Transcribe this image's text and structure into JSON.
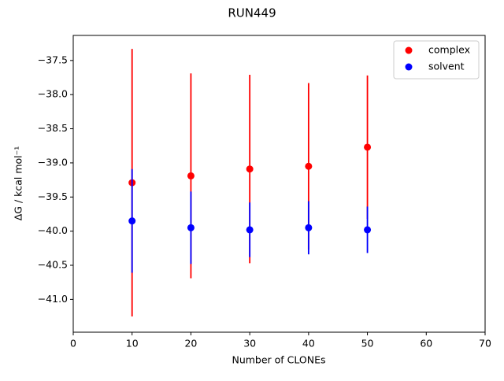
{
  "chart_data": {
    "type": "errorbar-scatter",
    "title": "RUN449",
    "xlabel": "Number of CLONEs",
    "ylabel": "ΔG / kcal mol⁻¹",
    "x": [
      10,
      20,
      30,
      40,
      50
    ],
    "series": [
      {
        "name": "complex",
        "color": "#ff0000",
        "values": [
          -39.29,
          -39.19,
          -39.09,
          -39.05,
          -38.77
        ],
        "error": [
          1.96,
          1.5,
          1.38,
          1.22,
          1.05
        ]
      },
      {
        "name": "solvent",
        "color": "#0000ff",
        "values": [
          -39.85,
          -39.95,
          -39.98,
          -39.95,
          -39.98
        ],
        "error": [
          0.76,
          0.53,
          0.4,
          0.39,
          0.34
        ]
      }
    ],
    "xlim": [
      0,
      70
    ],
    "xticks": [
      0,
      10,
      20,
      30,
      40,
      50,
      60,
      70
    ],
    "ylim": [
      -41.48,
      -37.133
    ],
    "yticks": [
      {
        "value": -37.5,
        "label": "−37.5"
      },
      {
        "value": -38.0,
        "label": "−38.0"
      },
      {
        "value": -38.5,
        "label": "−38.5"
      },
      {
        "value": -39.0,
        "label": "−39.0"
      },
      {
        "value": -39.5,
        "label": "−39.5"
      },
      {
        "value": -40.0,
        "label": "−40.0"
      },
      {
        "value": -40.5,
        "label": "−40.5"
      },
      {
        "value": -41.0,
        "label": "−41.0"
      }
    ],
    "grid": false,
    "legend": "upper right"
  }
}
